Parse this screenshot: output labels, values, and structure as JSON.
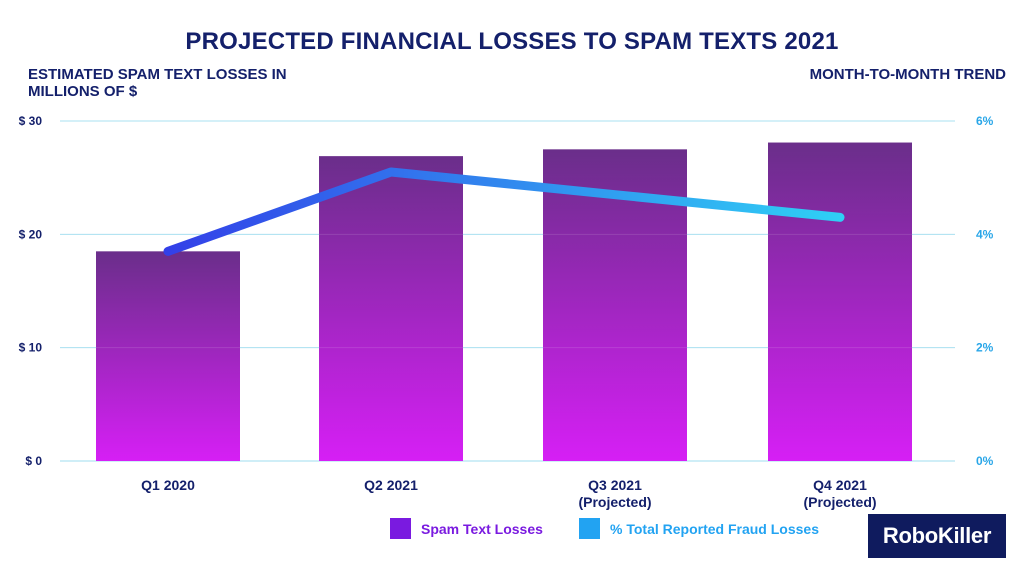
{
  "title": "PROJECTED FINANCIAL LOSSES TO SPAM TEXTS 2021",
  "brand": {
    "logo_text": "RoboKiller"
  },
  "colors": {
    "navy": "#14206b",
    "bar_top": "#6a2e8a",
    "bar_bottom": "#d61ff5",
    "line_start": "#3340e8",
    "line_end": "#2fd0f5",
    "grid": "#9fdcef",
    "legend_bar": "#7a1ae0",
    "legend_line": "#22a3f2"
  },
  "legend": [
    {
      "label": "Spam Text Losses",
      "swatch": "bar"
    },
    {
      "label": "% Total Reported Fraud Losses",
      "swatch": "line"
    }
  ],
  "chart_data": {
    "type": "bar",
    "title": "PROJECTED FINANCIAL LOSSES TO SPAM TEXTS 2021",
    "ylabel": "ESTIMATED SPAM TEXT LOSSES IN MILLIONS OF $",
    "y2label": "MONTH-TO-MONTH TREND",
    "categories": [
      "Q1 2020",
      "Q2 2021",
      "Q3 2021\n(Projected)",
      "Q4 2021\n(Projected)"
    ],
    "ylim": [
      0,
      30
    ],
    "y2lim": [
      0,
      6
    ],
    "yticks": [
      "$ 0",
      "$ 10",
      "$ 20",
      "$ 30"
    ],
    "y2ticks": [
      "0%",
      "2%",
      "4%",
      "6%"
    ],
    "grid": true,
    "legend_position": "bottom",
    "series": [
      {
        "name": "Spam Text Losses",
        "axis": "left",
        "type": "bar",
        "values": [
          18.5,
          26.9,
          27.5,
          28.1
        ]
      },
      {
        "name": "% Total Reported Fraud Losses",
        "axis": "right",
        "type": "line",
        "values": [
          3.7,
          5.1,
          4.7,
          4.3
        ]
      }
    ]
  }
}
